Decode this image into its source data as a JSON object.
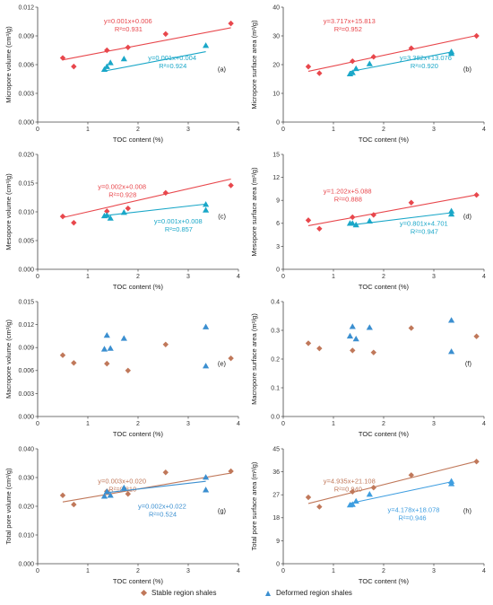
{
  "x_axis_label": "TOC content (%)",
  "legend": {
    "stable": "Stable region shales",
    "deformed": "Deformed region shales"
  },
  "colors": {
    "stable_red": "#e8474c",
    "deformed_cyan": "#1aa7c8",
    "stable_brown": "#c0785a",
    "deformed_blue": "#3b8fd0",
    "deformed_lightblue": "#3f9ee0"
  },
  "chart_data": [
    {
      "type": "scatter",
      "panel": "(a)",
      "ylabel": "Micropore volume (cm³/g)",
      "xlim": [
        0,
        4
      ],
      "ylim": [
        0,
        0.012
      ],
      "xticks": [
        "0",
        "1",
        "2",
        "3",
        "4"
      ],
      "yticks": [
        "0.000",
        "0.003",
        "0.006",
        "0.009",
        "0.012"
      ],
      "series": [
        {
          "name": "Stable region shales",
          "marker": "diamond",
          "color_key": "stable_red",
          "points": [
            [
              0.5,
              0.0067
            ],
            [
              0.72,
              0.0058
            ],
            [
              1.38,
              0.0075
            ],
            [
              1.8,
              0.0078
            ],
            [
              2.55,
              0.0092
            ],
            [
              3.85,
              0.0103
            ]
          ],
          "fit": {
            "slope": 0.001,
            "intercept": 0.006,
            "x_range": [
              0.5,
              3.85
            ]
          },
          "equation": "y=0.001x+0.006",
          "r2": "R²=0.931"
        },
        {
          "name": "Deformed region shales",
          "marker": "triangle",
          "color_key": "deformed_cyan",
          "points": [
            [
              1.33,
              0.0055
            ],
            [
              1.38,
              0.0058
            ],
            [
              1.45,
              0.0062
            ],
            [
              1.72,
              0.0066
            ],
            [
              3.35,
              0.008
            ]
          ],
          "fit": {
            "slope": 0.001,
            "intercept": 0.004,
            "x_range": [
              1.33,
              3.35
            ]
          },
          "equation": "y=0.001x+0.004",
          "r2": "R²=0.924"
        }
      ]
    },
    {
      "type": "scatter",
      "panel": "(b)",
      "ylabel": "Micropore surface area (m²/g)",
      "xlim": [
        0,
        4
      ],
      "ylim": [
        0,
        40
      ],
      "xticks": [
        "0",
        "1",
        "2",
        "3",
        "4"
      ],
      "yticks": [
        "0",
        "10",
        "20",
        "30",
        "40"
      ],
      "series": [
        {
          "name": "Stable region shales",
          "marker": "diamond",
          "color_key": "stable_red",
          "points": [
            [
              0.5,
              19.3
            ],
            [
              0.72,
              17.0
            ],
            [
              1.38,
              21.2
            ],
            [
              1.8,
              22.7
            ],
            [
              2.55,
              25.7
            ],
            [
              3.85,
              30.0
            ]
          ],
          "fit": {
            "slope": 3.717,
            "intercept": 15.813,
            "x_range": [
              0.5,
              3.85
            ]
          },
          "equation": "y=3.717x+15.813",
          "r2": "R²=0.952"
        },
        {
          "name": "Deformed region shales",
          "marker": "triangle",
          "color_key": "deformed_cyan",
          "points": [
            [
              1.33,
              16.8
            ],
            [
              1.38,
              17.2
            ],
            [
              1.45,
              18.6
            ],
            [
              1.72,
              20.3
            ],
            [
              3.35,
              23.9
            ],
            [
              3.35,
              24.5
            ]
          ],
          "fit": {
            "slope": 3.382,
            "intercept": 13.076,
            "x_range": [
              1.33,
              3.35
            ]
          },
          "equation": "y=3.382x+13.076",
          "r2": "R²=0.920"
        }
      ]
    },
    {
      "type": "scatter",
      "panel": "(c)",
      "ylabel": "Mesopore volume (cm³/g)",
      "xlim": [
        0,
        4
      ],
      "ylim": [
        0,
        0.02
      ],
      "xticks": [
        "0",
        "1",
        "2",
        "3",
        "4"
      ],
      "yticks": [
        "0.000",
        "0.005",
        "0.010",
        "0.015",
        "0.020"
      ],
      "series": [
        {
          "name": "Stable region shales",
          "marker": "diamond",
          "color_key": "stable_red",
          "points": [
            [
              0.5,
              0.0092
            ],
            [
              0.72,
              0.0081
            ],
            [
              1.38,
              0.0101
            ],
            [
              1.8,
              0.0106
            ],
            [
              2.55,
              0.0133
            ],
            [
              3.85,
              0.0146
            ]
          ],
          "fit": {
            "slope": 0.002,
            "intercept": 0.008,
            "x_range": [
              0.5,
              3.85
            ]
          },
          "equation": "y=0.002x+0.008",
          "r2": "R²=0.928"
        },
        {
          "name": "Deformed region shales",
          "marker": "triangle",
          "color_key": "deformed_cyan",
          "points": [
            [
              1.33,
              0.0093
            ],
            [
              1.38,
              0.0094
            ],
            [
              1.45,
              0.0089
            ],
            [
              1.72,
              0.0099
            ],
            [
              3.35,
              0.0103
            ],
            [
              3.35,
              0.0113
            ]
          ],
          "fit": {
            "slope": 0.001,
            "intercept": 0.008,
            "x_range": [
              1.33,
              3.35
            ]
          },
          "equation": "y=0.001x+0.008",
          "r2": "R²=0.857"
        }
      ]
    },
    {
      "type": "scatter",
      "panel": "(d)",
      "ylabel": "Mesopore surface area (m²/g)",
      "xlim": [
        0,
        4
      ],
      "ylim": [
        0,
        15
      ],
      "xticks": [
        "0",
        "1",
        "2",
        "3",
        "4"
      ],
      "yticks": [
        "0",
        "3",
        "6",
        "9",
        "12",
        "15"
      ],
      "series": [
        {
          "name": "Stable region shales",
          "marker": "diamond",
          "color_key": "stable_red",
          "points": [
            [
              0.5,
              6.4
            ],
            [
              0.72,
              5.3
            ],
            [
              1.38,
              6.8
            ],
            [
              1.8,
              7.1
            ],
            [
              2.55,
              8.7
            ],
            [
              3.85,
              9.7
            ]
          ],
          "fit": {
            "slope": 1.202,
            "intercept": 5.088,
            "x_range": [
              0.5,
              3.85
            ]
          },
          "equation": "y=1.202x+5.088",
          "r2": "R²=0.888"
        },
        {
          "name": "Deformed region shales",
          "marker": "triangle",
          "color_key": "deformed_cyan",
          "points": [
            [
              1.33,
              6.0
            ],
            [
              1.38,
              6.0
            ],
            [
              1.45,
              5.8
            ],
            [
              1.72,
              6.3
            ],
            [
              3.35,
              7.2
            ],
            [
              3.35,
              7.6
            ]
          ],
          "fit": {
            "slope": 0.801,
            "intercept": 4.701,
            "x_range": [
              1.33,
              3.35
            ]
          },
          "equation": "y=0.801x+4.701",
          "r2": "R²=0.947"
        }
      ]
    },
    {
      "type": "scatter",
      "panel": "(e)",
      "ylabel": "Macropore volume (cm³/g)",
      "xlim": [
        0,
        4
      ],
      "ylim": [
        0,
        0.015
      ],
      "xticks": [
        "0",
        "1",
        "2",
        "3",
        "4"
      ],
      "yticks": [
        "0.000",
        "0.003",
        "0.006",
        "0.009",
        "0.012",
        "0.015"
      ],
      "series": [
        {
          "name": "Stable region shales",
          "marker": "diamond",
          "color_key": "stable_brown",
          "points": [
            [
              0.5,
              0.008
            ],
            [
              0.72,
              0.007
            ],
            [
              1.38,
              0.0069
            ],
            [
              1.8,
              0.006
            ],
            [
              2.55,
              0.0094
            ],
            [
              3.85,
              0.0076
            ]
          ]
        },
        {
          "name": "Deformed region shales",
          "marker": "triangle",
          "color_key": "deformed_blue",
          "points": [
            [
              1.33,
              0.0088
            ],
            [
              1.38,
              0.0106
            ],
            [
              1.45,
              0.0089
            ],
            [
              1.72,
              0.0102
            ],
            [
              3.35,
              0.0066
            ],
            [
              3.35,
              0.0117
            ]
          ]
        }
      ]
    },
    {
      "type": "scatter",
      "panel": "(f)",
      "ylabel": "Macropore surface area (m²/g)",
      "xlim": [
        0,
        4
      ],
      "ylim": [
        0,
        0.4
      ],
      "xticks": [
        "0",
        "1",
        "2",
        "3",
        "4"
      ],
      "yticks": [
        "0.0",
        "0.1",
        "0.2",
        "0.3",
        "0.4"
      ],
      "series": [
        {
          "name": "Stable region shales",
          "marker": "diamond",
          "color_key": "stable_brown",
          "points": [
            [
              0.5,
              0.255
            ],
            [
              0.72,
              0.237
            ],
            [
              1.38,
              0.23
            ],
            [
              1.8,
              0.223
            ],
            [
              2.55,
              0.308
            ],
            [
              3.85,
              0.279
            ]
          ]
        },
        {
          "name": "Deformed region shales",
          "marker": "triangle",
          "color_key": "deformed_blue",
          "points": [
            [
              1.33,
              0.28
            ],
            [
              1.38,
              0.313
            ],
            [
              1.45,
              0.27
            ],
            [
              1.72,
              0.31
            ],
            [
              3.35,
              0.335
            ],
            [
              3.35,
              0.226
            ]
          ]
        }
      ]
    },
    {
      "type": "scatter",
      "panel": "(g)",
      "ylabel": "Total pore volume (cm³/g)",
      "xlim": [
        0,
        4
      ],
      "ylim": [
        0,
        0.04
      ],
      "xticks": [
        "0",
        "1",
        "2",
        "3",
        "4"
      ],
      "yticks": [
        "0.000",
        "0.010",
        "0.020",
        "0.030",
        "0.040"
      ],
      "series": [
        {
          "name": "Stable region shales",
          "marker": "diamond",
          "color_key": "stable_brown",
          "points": [
            [
              0.5,
              0.0238
            ],
            [
              0.72,
              0.0206
            ],
            [
              1.38,
              0.0252
            ],
            [
              1.8,
              0.0243
            ],
            [
              2.55,
              0.0318
            ],
            [
              3.85,
              0.0322
            ]
          ],
          "fit": {
            "slope": 0.003,
            "intercept": 0.02,
            "x_range": [
              0.5,
              3.85
            ]
          },
          "equation": "y=0.003x+0.020",
          "r2": "R²=0.810"
        },
        {
          "name": "Deformed region shales",
          "marker": "triangle",
          "color_key": "deformed_blue",
          "points": [
            [
              1.33,
              0.0235
            ],
            [
              1.38,
              0.0251
            ],
            [
              1.45,
              0.0238
            ],
            [
              1.72,
              0.0264
            ],
            [
              3.35,
              0.0257
            ],
            [
              3.35,
              0.0301
            ]
          ],
          "fit": {
            "slope": 0.002,
            "intercept": 0.022,
            "x_range": [
              1.33,
              3.35
            ]
          },
          "equation": "y=0.002x+0.022",
          "r2": "R²=0.524"
        }
      ]
    },
    {
      "type": "scatter",
      "panel": "(h)",
      "ylabel": "Total pore surface area (m²/g)",
      "xlim": [
        0,
        4
      ],
      "ylim": [
        0,
        45
      ],
      "xticks": [
        "0",
        "1",
        "2",
        "3",
        "4"
      ],
      "yticks": [
        "0",
        "9",
        "18",
        "27",
        "36",
        "45"
      ],
      "series": [
        {
          "name": "Stable region shales",
          "marker": "diamond",
          "color_key": "stable_brown",
          "points": [
            [
              0.5,
              26.0
            ],
            [
              0.72,
              22.3
            ],
            [
              1.38,
              28.2
            ],
            [
              1.8,
              29.8
            ],
            [
              2.55,
              34.7
            ],
            [
              3.85,
              40.0
            ]
          ],
          "fit": {
            "slope": 4.935,
            "intercept": 21.108,
            "x_range": [
              0.5,
              3.85
            ]
          },
          "equation": "y=4.935x+21.108",
          "r2": "R²=0.940"
        },
        {
          "name": "Deformed region shales",
          "marker": "triangle",
          "color_key": "deformed_lightblue",
          "points": [
            [
              1.33,
              23.0
            ],
            [
              1.38,
              23.2
            ],
            [
              1.45,
              24.5
            ],
            [
              1.72,
              27.2
            ],
            [
              3.35,
              31.3
            ],
            [
              3.35,
              32.3
            ]
          ],
          "fit": {
            "slope": 4.178,
            "intercept": 18.078,
            "x_range": [
              1.33,
              3.35
            ]
          },
          "equation": "y=4.178x+18.078",
          "r2": "R²=0.946"
        }
      ]
    }
  ]
}
